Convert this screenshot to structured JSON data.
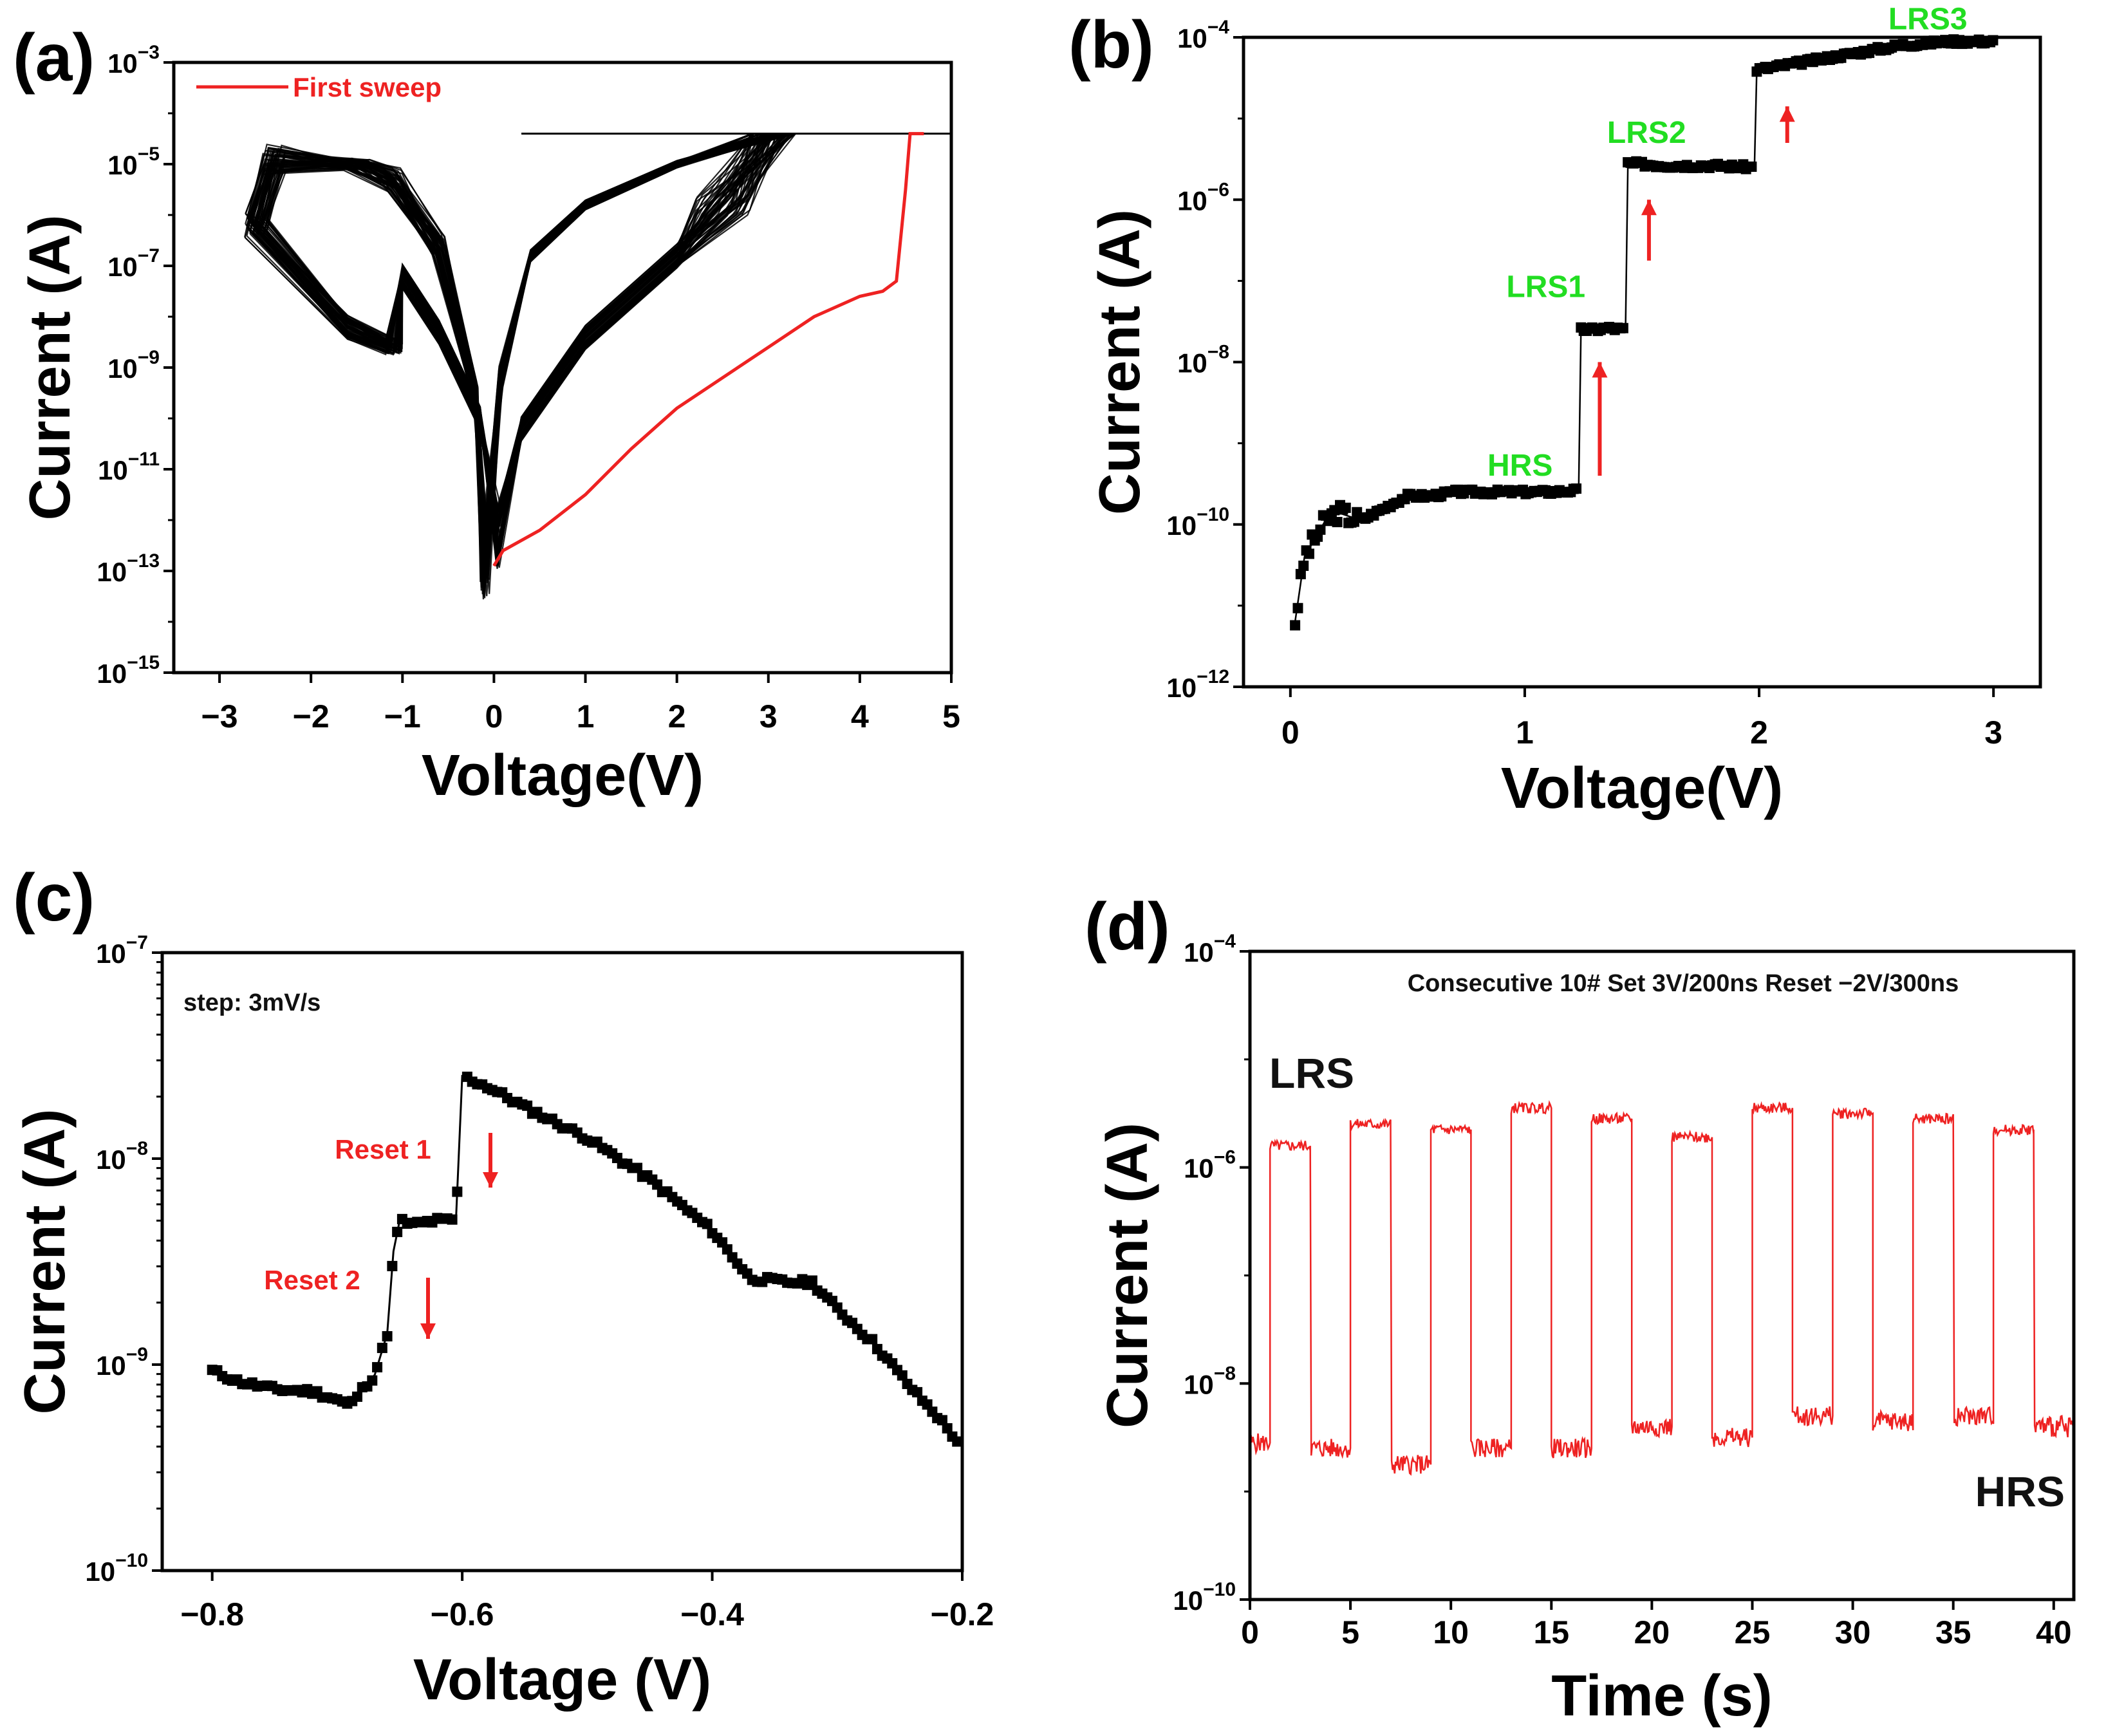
{
  "chart_data": [
    {
      "id": "a",
      "type": "line",
      "panel_label": "(a)",
      "xlabel": "Voltage(V)",
      "ylabel": "Current (A)",
      "xlim": [
        -3.5,
        5
      ],
      "ylim_exp": [
        -15,
        -3
      ],
      "x_ticks": [
        "−3",
        "−2",
        "−1",
        "0",
        "1",
        "2",
        "3",
        "4",
        "5"
      ],
      "y_ticks": [
        "10^-3",
        "10^-5",
        "10^-7",
        "10^-9",
        "10^-11",
        "10^-13",
        "10^-15"
      ],
      "legend": [
        {
          "label": "First sweep",
          "color": "#ee2222"
        }
      ],
      "series": [
        {
          "name": "First sweep",
          "color": "#ee2222",
          "x": [
            0,
            0.1,
            0.5,
            1.0,
            1.5,
            2.0,
            2.5,
            3.0,
            3.5,
            4.0,
            4.25,
            4.4,
            4.5,
            4.55,
            4.6,
            4.7
          ],
          "y_log10": [
            -12.9,
            -12.6,
            -12.2,
            -11.5,
            -10.6,
            -9.8,
            -9.2,
            -8.6,
            -8.0,
            -7.6,
            -7.5,
            -7.3,
            -5.5,
            -4.4,
            -4.4,
            -4.4
          ]
        }
      ],
      "cycled_sweeps": {
        "color": "#000000",
        "count": 60,
        "compliance_log10": -4.4,
        "negative_start_v": -2.6,
        "positive_end_v": 3.3,
        "min_near_v": -0.1
      }
    },
    {
      "id": "b",
      "type": "scatter",
      "panel_label": "(b)",
      "xlabel": "Voltage(V)",
      "ylabel": "Current (A)",
      "xlim": [
        -0.2,
        3.2
      ],
      "ylim_exp": [
        -12,
        -4
      ],
      "x_ticks": [
        "0",
        "1",
        "2",
        "3"
      ],
      "y_ticks": [
        "10^-4",
        "10^-6",
        "10^-8",
        "10^-10",
        "10^-12"
      ],
      "annotations": [
        {
          "text": "HRS",
          "x": 0.98,
          "y_log10": -9.4
        },
        {
          "text": "LRS1",
          "x": 1.09,
          "y_log10": -7.2
        },
        {
          "text": "LRS2",
          "x": 1.52,
          "y_log10": -5.3
        },
        {
          "text": "LRS3",
          "x": 2.72,
          "y_log10": -3.9
        }
      ],
      "arrows_x": [
        1.32,
        1.53,
        2.12
      ],
      "series": [
        {
          "name": "I-V staircase",
          "color": "#000000",
          "x": [
            0.02,
            0.04,
            0.06,
            0.1,
            0.15,
            0.2,
            0.3,
            0.4,
            0.5,
            0.6,
            0.7,
            0.8,
            0.9,
            1.0,
            1.1,
            1.23,
            1.24,
            1.3,
            1.35,
            1.43,
            1.44,
            1.6,
            1.8,
            1.98,
            1.99,
            2.2,
            2.4,
            2.6,
            2.8,
            3.0
          ],
          "y_log10": [
            -11.2,
            -10.8,
            -10.4,
            -10.2,
            -9.95,
            -9.85,
            -9.95,
            -9.8,
            -9.65,
            -9.65,
            -9.6,
            -9.6,
            -9.6,
            -9.6,
            -9.6,
            -9.58,
            -7.6,
            -7.6,
            -7.58,
            -7.6,
            -5.55,
            -5.58,
            -5.58,
            -5.6,
            -4.4,
            -4.3,
            -4.2,
            -4.1,
            -4.05,
            -4.05
          ]
        }
      ]
    },
    {
      "id": "c",
      "type": "scatter",
      "panel_label": "(c)",
      "xlabel": "Voltage (V)",
      "ylabel": "Current (A)",
      "xlim": [
        -0.84,
        -0.2
      ],
      "ylim_exp": [
        -10,
        -7
      ],
      "x_ticks": [
        "−0.8",
        "−0.6",
        "−0.4",
        "−0.2"
      ],
      "y_ticks": [
        "10^-7",
        "10^-8",
        "10^-9",
        "10^-10"
      ],
      "annotations": [
        {
          "text": "step: 3mV/s"
        },
        {
          "text": "Reset 1",
          "x": -0.625,
          "y_log10": -8.0
        },
        {
          "text": "Reset 2",
          "x": -0.67,
          "y_log10": -8.6
        }
      ],
      "series": [
        {
          "name": "Reset sweep",
          "color": "#000000",
          "x": [
            -0.8,
            -0.78,
            -0.75,
            -0.72,
            -0.7,
            -0.69,
            -0.68,
            -0.67,
            -0.665,
            -0.66,
            -0.655,
            -0.65,
            -0.64,
            -0.62,
            -0.605,
            -0.6,
            -0.58,
            -0.55,
            -0.5,
            -0.45,
            -0.4,
            -0.37,
            -0.34,
            -0.32,
            -0.3,
            -0.27,
            -0.24,
            -0.22,
            -0.2
          ],
          "y_log10": [
            -9.03,
            -9.08,
            -9.12,
            -9.13,
            -9.17,
            -9.2,
            -9.12,
            -9.05,
            -8.95,
            -8.85,
            -8.45,
            -8.3,
            -8.32,
            -8.3,
            -8.3,
            -7.6,
            -7.65,
            -7.75,
            -7.9,
            -8.1,
            -8.35,
            -8.58,
            -8.6,
            -8.6,
            -8.73,
            -8.9,
            -9.12,
            -9.25,
            -9.4
          ]
        }
      ]
    },
    {
      "id": "d",
      "type": "line",
      "panel_label": "(d)",
      "xlabel": "Time (s)",
      "ylabel": "Current (A)",
      "xlim": [
        0,
        41
      ],
      "ylim_exp": [
        -10,
        -4
      ],
      "x_ticks": [
        "0",
        "5",
        "10",
        "15",
        "20",
        "25",
        "30",
        "35",
        "40"
      ],
      "y_ticks": [
        "10^-4",
        "10^-6",
        "10^-8",
        "10^-10"
      ],
      "title": "Consecutive 10# Set 3V/200ns Reset −2V/300ns",
      "annotations": [
        {
          "text": "LRS"
        },
        {
          "text": "HRS"
        }
      ],
      "series": [
        {
          "name": "Pulse response",
          "color": "#ee2222",
          "pulses": [
            {
              "t_on": 1.0,
              "t_off": 3.0,
              "lrs_log10": -5.8,
              "hrs_log10": -8.6
            },
            {
              "t_on": 5.0,
              "t_off": 7.0,
              "lrs_log10": -5.6,
              "hrs_log10": -8.75
            },
            {
              "t_on": 9.0,
              "t_off": 11.0,
              "lrs_log10": -5.65,
              "hrs_log10": -8.6
            },
            {
              "t_on": 13.0,
              "t_off": 15.0,
              "lrs_log10": -5.45,
              "hrs_log10": -8.6
            },
            {
              "t_on": 17.0,
              "t_off": 19.0,
              "lrs_log10": -5.55,
              "hrs_log10": -8.4
            },
            {
              "t_on": 21.0,
              "t_off": 23.0,
              "lrs_log10": -5.72,
              "hrs_log10": -8.5
            },
            {
              "t_on": 25.0,
              "t_off": 27.0,
              "lrs_log10": -5.45,
              "hrs_log10": -8.3
            },
            {
              "t_on": 29.0,
              "t_off": 31.0,
              "lrs_log10": -5.5,
              "hrs_log10": -8.35
            },
            {
              "t_on": 33.0,
              "t_off": 35.0,
              "lrs_log10": -5.55,
              "hrs_log10": -8.3
            },
            {
              "t_on": 37.0,
              "t_off": 39.0,
              "lrs_log10": -5.65,
              "hrs_log10": -8.2
            }
          ],
          "start_hrs_log10": -8.55,
          "end_hrs_log10": -8.4
        }
      ]
    }
  ]
}
